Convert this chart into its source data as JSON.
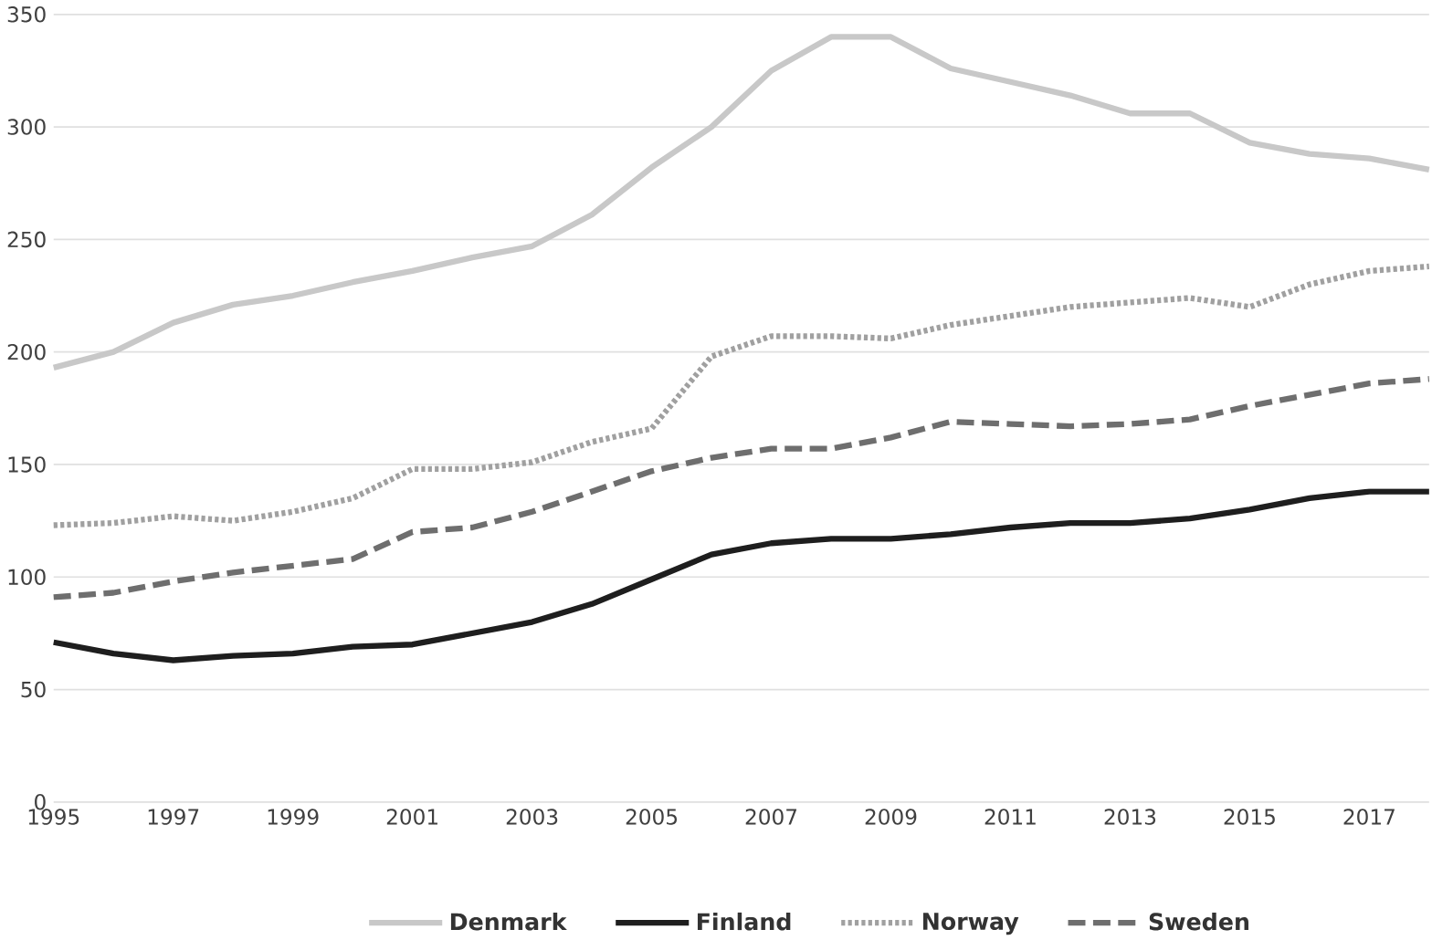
{
  "chart_data": {
    "type": "line",
    "x": [
      1995,
      1996,
      1997,
      1998,
      1999,
      2000,
      2001,
      2002,
      2003,
      2004,
      2005,
      2006,
      2007,
      2008,
      2009,
      2010,
      2011,
      2012,
      2013,
      2014,
      2015,
      2016,
      2017,
      2018
    ],
    "series": [
      {
        "name": "Denmark",
        "color": "#c8c8c8",
        "line_style": "solid",
        "values": [
          193,
          200,
          213,
          221,
          225,
          231,
          236,
          242,
          247,
          261,
          282,
          300,
          325,
          340,
          340,
          326,
          320,
          314,
          306,
          306,
          293,
          288,
          286,
          281
        ]
      },
      {
        "name": "Finland",
        "color": "#1e1e1e",
        "line_style": "solid",
        "values": [
          71,
          66,
          63,
          65,
          66,
          69,
          70,
          75,
          80,
          88,
          99,
          110,
          115,
          117,
          117,
          119,
          122,
          124,
          124,
          126,
          130,
          135,
          138,
          138
        ]
      },
      {
        "name": "Norway",
        "color": "#a0a0a0",
        "line_style": "dotted",
        "values": [
          123,
          124,
          127,
          125,
          129,
          135,
          148,
          148,
          151,
          160,
          166,
          198,
          207,
          207,
          206,
          212,
          216,
          220,
          222,
          224,
          220,
          230,
          236,
          238
        ]
      },
      {
        "name": "Sweden",
        "color": "#6e6e6e",
        "line_style": "dashed",
        "values": [
          91,
          93,
          98,
          102,
          105,
          108,
          120,
          122,
          129,
          138,
          147,
          153,
          157,
          157,
          162,
          169,
          168,
          167,
          168,
          170,
          176,
          181,
          186,
          188
        ]
      }
    ],
    "xlim": [
      1995,
      2018
    ],
    "ylim": [
      0,
      350
    ],
    "xticks": [
      1995,
      1997,
      1999,
      2001,
      2003,
      2005,
      2007,
      2009,
      2011,
      2013,
      2015,
      2017
    ],
    "yticks": [
      0,
      50,
      100,
      150,
      200,
      250,
      300,
      350
    ],
    "grid": "y",
    "legend": "bottom",
    "marker": "none"
  }
}
